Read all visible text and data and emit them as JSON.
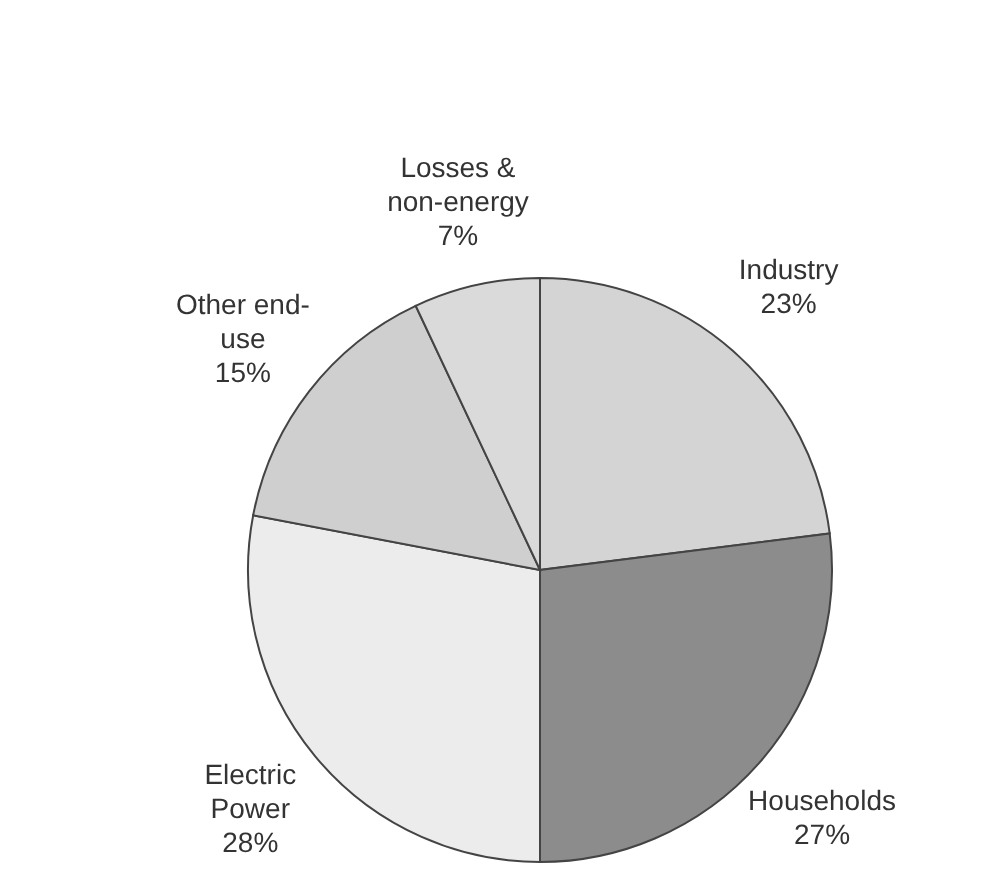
{
  "chart_data": {
    "type": "pie",
    "categories": [
      "Industry",
      "Households",
      "Electric Power",
      "Other end-use",
      "Losses & non-energy"
    ],
    "values": [
      23,
      27,
      28,
      15,
      7
    ],
    "colors": [
      "#d4d4d4",
      "#8c8c8c",
      "#ececec",
      "#cfcfcf",
      "#dadada"
    ],
    "value_labels": [
      "23%",
      "27%",
      "28%",
      "15%",
      "7%"
    ]
  }
}
